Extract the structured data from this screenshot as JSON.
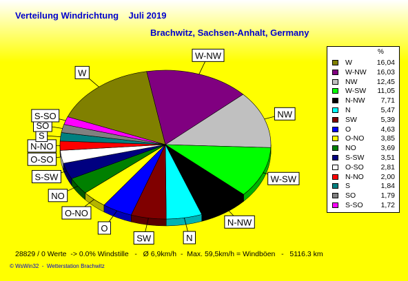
{
  "header": {
    "title": "Verteilung Windrichtung    Juli 2019",
    "subtitle": "Brachwitz, Sachsen-Anhalt, Germany"
  },
  "chart_data": {
    "type": "pie",
    "legend_position": "right",
    "unit_label": "%",
    "slices": [
      {
        "name": "W",
        "value": 16.04,
        "display": "16,04",
        "color": "#808000"
      },
      {
        "name": "W-NW",
        "value": 16.03,
        "display": "16,03",
        "color": "#800080"
      },
      {
        "name": "NW",
        "value": 12.45,
        "display": "12,45",
        "color": "#c0c0c0"
      },
      {
        "name": "W-SW",
        "value": 11.05,
        "display": "11,05",
        "color": "#00ff00"
      },
      {
        "name": "N-NW",
        "value": 7.71,
        "display": "7,71",
        "color": "#000000"
      },
      {
        "name": "N",
        "value": 5.47,
        "display": "5,47",
        "color": "#00ffff"
      },
      {
        "name": "SW",
        "value": 5.39,
        "display": "5,39",
        "color": "#800000"
      },
      {
        "name": "O",
        "value": 4.63,
        "display": "4,63",
        "color": "#0000ff"
      },
      {
        "name": "O-NO",
        "value": 3.85,
        "display": "3,85",
        "color": "#ffff00"
      },
      {
        "name": "NO",
        "value": 3.69,
        "display": "3,69",
        "color": "#008000"
      },
      {
        "name": "S-SW",
        "value": 3.51,
        "display": "3,51",
        "color": "#000080"
      },
      {
        "name": "O-SO",
        "value": 2.81,
        "display": "2,81",
        "color": "#ffffff"
      },
      {
        "name": "N-NO",
        "value": 2.0,
        "display": "2,00",
        "color": "#ff0000"
      },
      {
        "name": "S",
        "value": 1.84,
        "display": "1,84",
        "color": "#008080"
      },
      {
        "name": "SO",
        "value": 1.79,
        "display": "1,79",
        "color": "#808080"
      },
      {
        "name": "S-SO",
        "value": 1.72,
        "display": "1,72",
        "color": "#ff00ff"
      }
    ]
  },
  "footer": {
    "stats": "28829 / 0 Werte  -> 0.0% Windstille   -   Ø 6,9km/h  -  Max. 59,5km/h = Windböen   -   5116.3 km",
    "credits": "© WsWin32  -  Wetterstation Brachwitz"
  }
}
